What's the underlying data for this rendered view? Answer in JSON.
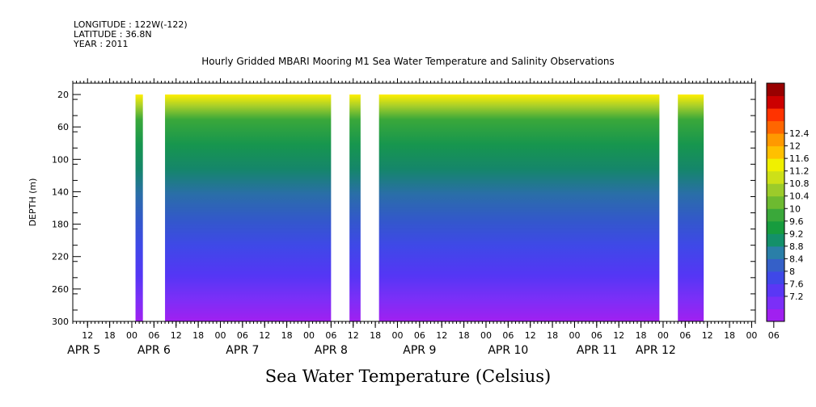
{
  "header": {
    "longitude": "LONGITUDE : 122W(-122)",
    "latitude": "LATITUDE : 36.8N",
    "year": "YEAR : 2011"
  },
  "chart_data": {
    "type": "heatmap",
    "title": "Hourly Gridded MBARI Mooring M1 Sea Water Temperature and Salinity Observations",
    "xlabel": "Sea Water Temperature (Celsius)",
    "ylabel": "DEPTH (m)",
    "x_unit": "hours",
    "xlim": [
      -16,
      169
    ],
    "ylim": [
      300,
      6
    ],
    "y_ticks": [
      20,
      60,
      100,
      140,
      180,
      220,
      260,
      300
    ],
    "hour_ticks": [
      {
        "h": -12,
        "label": "12"
      },
      {
        "h": -6,
        "label": "18"
      },
      {
        "h": 0,
        "label": "00"
      },
      {
        "h": 6,
        "label": "06"
      },
      {
        "h": 12,
        "label": "12"
      },
      {
        "h": 18,
        "label": "18"
      },
      {
        "h": 24,
        "label": "00"
      },
      {
        "h": 30,
        "label": "06"
      },
      {
        "h": 36,
        "label": "12"
      },
      {
        "h": 42,
        "label": "18"
      },
      {
        "h": 48,
        "label": "00"
      },
      {
        "h": 54,
        "label": "06"
      },
      {
        "h": 60,
        "label": "12"
      },
      {
        "h": 66,
        "label": "18"
      },
      {
        "h": 72,
        "label": "00"
      },
      {
        "h": 78,
        "label": "06"
      },
      {
        "h": 84,
        "label": "12"
      },
      {
        "h": 90,
        "label": "18"
      },
      {
        "h": 96,
        "label": "00"
      },
      {
        "h": 102,
        "label": "06"
      },
      {
        "h": 108,
        "label": "12"
      },
      {
        "h": 114,
        "label": "18"
      },
      {
        "h": 120,
        "label": "00"
      },
      {
        "h": 126,
        "label": "06"
      },
      {
        "h": 132,
        "label": "12"
      },
      {
        "h": 138,
        "label": "18"
      },
      {
        "h": 144,
        "label": "00"
      },
      {
        "h": 150,
        "label": "06"
      },
      {
        "h": 156,
        "label": "12"
      },
      {
        "h": 162,
        "label": "18"
      },
      {
        "h": 168,
        "label": "00"
      },
      {
        "h": 174,
        "label": "06"
      }
    ],
    "day_labels": [
      {
        "h": -13,
        "label": "APR  5"
      },
      {
        "h": 6,
        "label": "APR  6"
      },
      {
        "h": 30,
        "label": "APR  7"
      },
      {
        "h": 54,
        "label": "APR  8"
      },
      {
        "h": 78,
        "label": "APR  9"
      },
      {
        "h": 102,
        "label": "APR 10"
      },
      {
        "h": 126,
        "label": "APR 11"
      },
      {
        "h": 142,
        "label": "APR 12"
      }
    ],
    "data_segments": [
      {
        "start": 1,
        "end": 3
      },
      {
        "start": 9,
        "end": 54
      },
      {
        "start": 59,
        "end": 62
      },
      {
        "start": 67,
        "end": 143
      },
      {
        "start": 148,
        "end": 155
      }
    ],
    "colorbar": {
      "levels": [
        7.2,
        7.6,
        8,
        8.4,
        8.8,
        9.2,
        9.6,
        10,
        10.4,
        10.8,
        11.2,
        11.6,
        12,
        12.4
      ],
      "labels": [
        "7.2",
        "7.6",
        "8",
        "8.4",
        "8.8",
        "9.2",
        "9.6",
        "10",
        "10.4",
        "10.8",
        "11.2",
        "11.6",
        "12",
        "12.4"
      ],
      "colors": [
        "#a020f0",
        "#7b2ff7",
        "#5a37f5",
        "#3f48e8",
        "#3560c8",
        "#2a7fa8",
        "#14906a",
        "#179c3e",
        "#3aa83a",
        "#6dba30",
        "#9ccb2a",
        "#cde018",
        "#f0f000",
        "#ffc000",
        "#ff9900",
        "#ff6600",
        "#ff3300",
        "#cc0000",
        "#990000"
      ]
    }
  }
}
